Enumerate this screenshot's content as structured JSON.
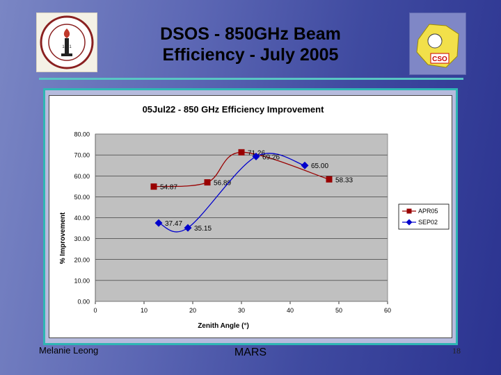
{
  "slide": {
    "title_line1": "DSOS - 850GHz Beam",
    "title_line2": "Efficiency - July 2005",
    "footer_left": "Melanie Leong",
    "footer_center": "MARS",
    "page_number": "18"
  },
  "logos": {
    "left": {
      "ring_text": "CALIFORNIA INSTITUTE OF TECHNOLOGY",
      "year": "1891"
    },
    "right": {
      "text": "CSO"
    }
  },
  "colors": {
    "apr05": "#990000",
    "sep02": "#0000cc",
    "plot_bg": "#c0c0c0",
    "frame": "#2fb6b4"
  },
  "chart_data": {
    "type": "line",
    "title": "05Jul22 - 850 GHz Efficiency Improvement",
    "xlabel": "Zenith Angle (°)",
    "ylabel": "% Improvement",
    "xlim": [
      0,
      60
    ],
    "ylim": [
      0,
      80
    ],
    "x_ticks": [
      "0",
      "10",
      "20",
      "30",
      "40",
      "50",
      "60"
    ],
    "y_ticks": [
      "0.00",
      "10.00",
      "20.00",
      "30.00",
      "40.00",
      "50.00",
      "60.00",
      "70.00",
      "80.00"
    ],
    "grid": true,
    "legend": "right",
    "series": [
      {
        "name": "APR05",
        "marker": "square",
        "x": [
          12,
          23,
          30,
          48
        ],
        "y": [
          54.87,
          56.89,
          71.26,
          58.33
        ],
        "labels": [
          "54.87",
          "56.89",
          "71.26",
          "58.33"
        ]
      },
      {
        "name": "SEP02",
        "marker": "diamond",
        "x": [
          13,
          19,
          33,
          43
        ],
        "y": [
          37.47,
          35.15,
          69.26,
          65.0
        ],
        "labels": [
          "37.47",
          "35.15",
          "69.26",
          "65.00"
        ]
      }
    ]
  }
}
